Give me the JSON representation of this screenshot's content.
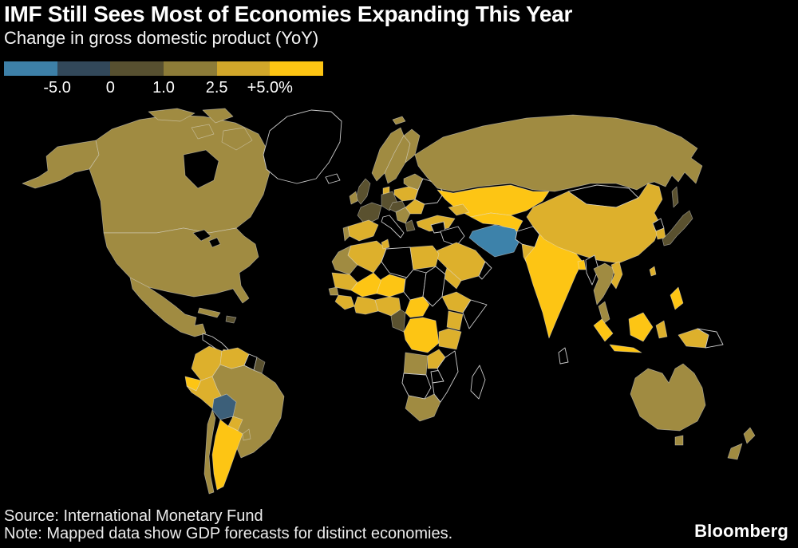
{
  "page": {
    "background": "#000000"
  },
  "footer": {
    "source": "Source: International Monetary Fund",
    "note": "Note: Mapped data show GDP forecasts for distinct economies.",
    "brand": "Bloomberg"
  },
  "chart_data": {
    "type": "choropleth",
    "title": "IMF Still Sees Most of Economies Expanding This Year",
    "subtitle": "Change in gross domestic product (YoY)",
    "unit": "percent change in GDP year over year",
    "legend": {
      "position": "top-left",
      "labels": [
        "-5.0",
        "0",
        "1.0",
        "2.5",
        "+5.0%"
      ],
      "colors": [
        "#3d80a8",
        "#32485a",
        "#575030",
        "#8d7c38",
        "#d2a72a",
        "#fdc513"
      ],
      "buckets": [
        "below -5.0",
        "-5.0 to 0",
        "0 to 1.0",
        "1.0 to 2.5",
        "2.5 to 5.0",
        "above 5.0"
      ]
    },
    "palette": {
      "below_neg5": "#3d82aa",
      "neg5_0": "#3c5f79",
      "0_1": "#5a512f",
      "1_25": "#a08b41",
      "25_5": "#ddb02c",
      "above_5": "#fdc514",
      "no_data": "#000000",
      "water": "#000000"
    },
    "regions": {
      "alaska": "1_25",
      "canada": "1_25",
      "arctic-island-1": "1_25",
      "arctic-island-2": "1_25",
      "baffin-island": "1_25",
      "victoria-island": "1_25",
      "hudson-bay": "water",
      "great-lake-1": "water",
      "great-lake-2": "water",
      "usa": "1_25",
      "mexico": "1_25",
      "cuba": "1_25",
      "hispaniola": "0_1",
      "central-america": "no_data",
      "panama": "25_5",
      "greenland": "no_data",
      "iceland": "no_data",
      "svalbard": "1_25",
      "colombia": "25_5",
      "venezuela": "25_5",
      "guyana": "no_data",
      "suriname": "0_1",
      "ecuador": "above_5",
      "peru": "25_5",
      "brazil": "1_25",
      "bolivia": "neg5_0",
      "paraguay": "25_5",
      "chile": "1_25",
      "argentina": "above_5",
      "uruguay": "1_25",
      "norway": "1_25",
      "sweden": "1_25",
      "finland": "1_25",
      "denmark": "25_5",
      "uk": "0_1",
      "ireland": "1_25",
      "france": "0_1",
      "germany": "0_1",
      "poland": "25_5",
      "baltics-belarus": "1_25",
      "ukraine": "no_data",
      "czech-austria": "0_1",
      "romania": "25_5",
      "balkans": "1_25",
      "greece": "0_1",
      "italy": "no_data",
      "spain": "25_5",
      "portugal": "1_25",
      "russia": "1_25",
      "sakhalin": "0_1",
      "kazakhstan": "above_5",
      "central-asia": "above_5",
      "caucasus": "25_5",
      "turkey": "25_5",
      "syria": "no_data",
      "iraq": "no_data",
      "iran": "below_neg5",
      "afghanistan": "no_data",
      "pakistan": "25_5",
      "saudi-arabia": "25_5",
      "yemen": "25_5",
      "oman": "no_data",
      "india": "above_5",
      "sri-lanka": "no_data",
      "bangladesh": "above_5",
      "myanmar": "no_data",
      "thailand-laos": "1_25",
      "vietnam": "25_5",
      "malay-peninsula": "1_25",
      "sumatra": "above_5",
      "java": "above_5",
      "borneo": "above_5",
      "sulawesi": "25_5",
      "new-guinea-west": "25_5",
      "papua-new-guinea": "no_data",
      "philippines": "above_5",
      "mongolia": "no_data",
      "china": "25_5",
      "north-korea": "no_data",
      "south-korea": "25_5",
      "japan": "0_1",
      "taiwan": "25_5",
      "morocco": "1_25",
      "algeria": "25_5",
      "tunisia": "25_5",
      "libya": "no_data",
      "egypt": "25_5",
      "mauritania": "25_5",
      "senegal": "1_25",
      "mali": "above_5",
      "guinea": "25_5",
      "ivory-ghana": "25_5",
      "niger": "above_5",
      "nigeria": "25_5",
      "chad": "no_data",
      "sudan": "no_data",
      "cameroon-gabon": "0_1",
      "central-african-republic": "above_5",
      "ethiopia": "25_5",
      "somalia": "no_data",
      "kenya": "25_5",
      "drc": "above_5",
      "tanzania": "25_5",
      "angola": "1_25",
      "zambia": "25_5",
      "zimbabwe": "no_data",
      "namibia-botswana": "no_data",
      "south-africa": "1_25",
      "mozambique": "no_data",
      "madagascar": "no_data",
      "australia": "1_25",
      "tasmania": "1_25",
      "new-zealand-north": "1_25",
      "new-zealand-south": "1_25"
    }
  }
}
